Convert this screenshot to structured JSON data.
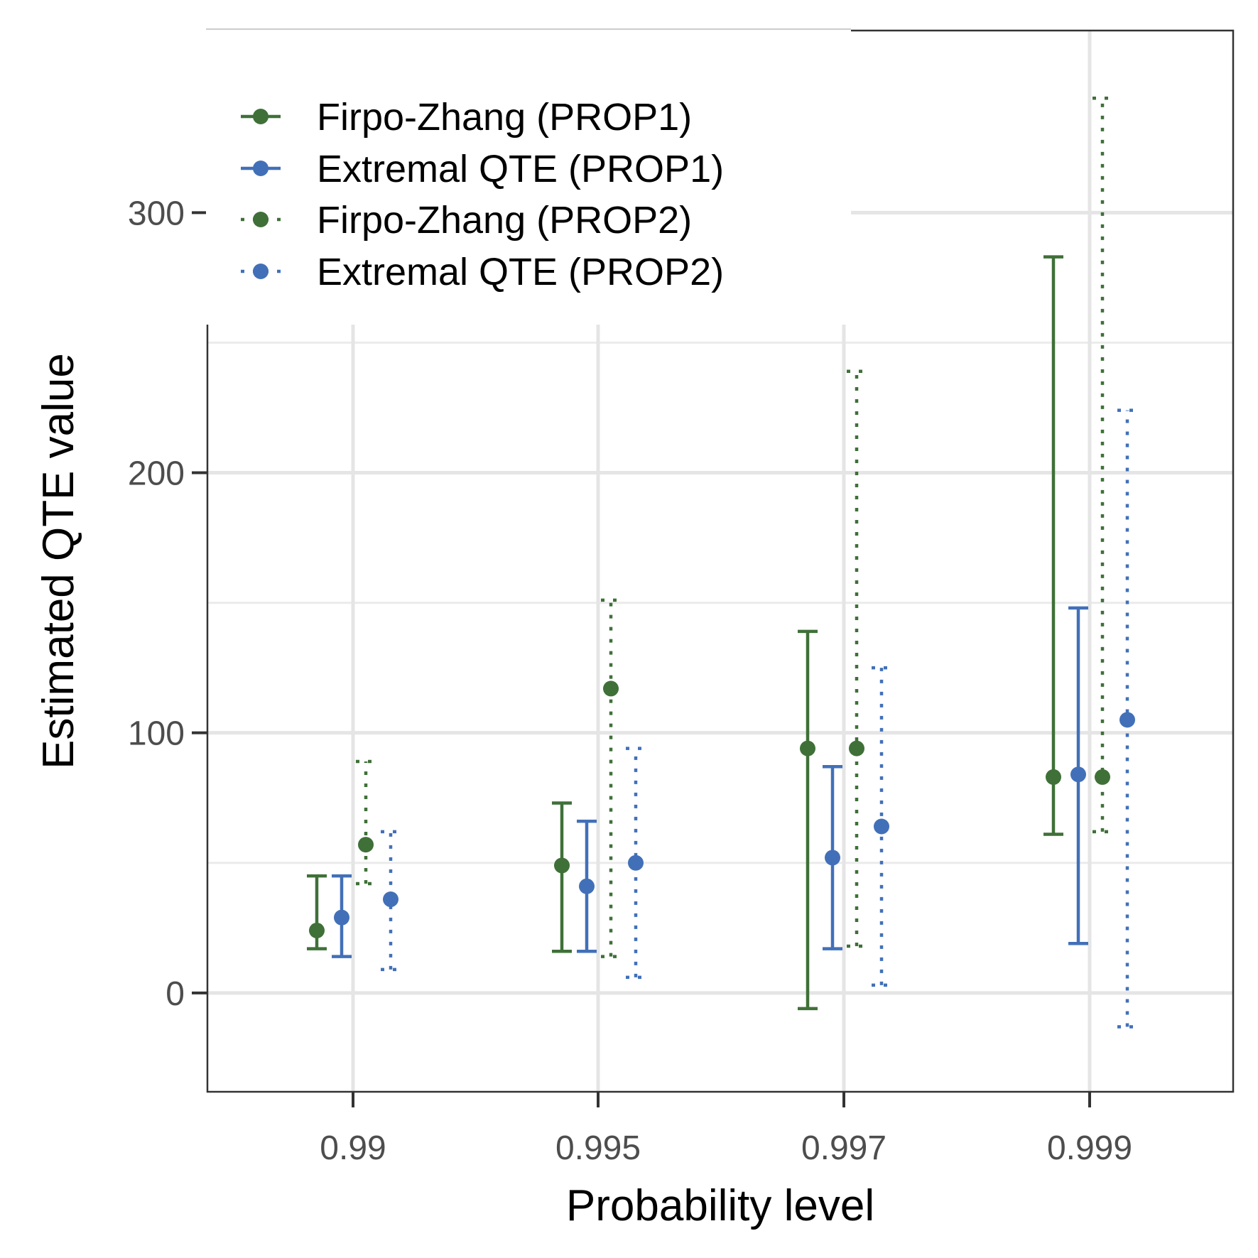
{
  "chart_data": {
    "type": "errorbar",
    "title": "",
    "xlabel": "Probability level",
    "ylabel": "Estimated QTE value",
    "categories": [
      "0.99",
      "0.995",
      "0.997",
      "0.999"
    ],
    "yticks": [
      0,
      100,
      200,
      300
    ],
    "yticks_minor": [
      50,
      150,
      250
    ],
    "ylim": [
      -38,
      370
    ],
    "grid": true,
    "legend_position": "top-left",
    "series": [
      {
        "name": "Firpo-Zhang (PROP1)",
        "color": "#3f7038",
        "linestyle": "solid",
        "points": [
          {
            "x": "0.99",
            "estimate": 24,
            "lower": 17,
            "upper": 45
          },
          {
            "x": "0.995",
            "estimate": 49,
            "lower": 16,
            "upper": 73
          },
          {
            "x": "0.997",
            "estimate": 94,
            "lower": -6,
            "upper": 139
          },
          {
            "x": "0.999",
            "estimate": 83,
            "lower": 61,
            "upper": 283
          }
        ]
      },
      {
        "name": "Extremal QTE (PROP1)",
        "color": "#4270b8",
        "linestyle": "solid",
        "points": [
          {
            "x": "0.99",
            "estimate": 29,
            "lower": 14,
            "upper": 45
          },
          {
            "x": "0.995",
            "estimate": 41,
            "lower": 16,
            "upper": 66
          },
          {
            "x": "0.997",
            "estimate": 52,
            "lower": 17,
            "upper": 87
          },
          {
            "x": "0.999",
            "estimate": 84,
            "lower": 19,
            "upper": 148
          }
        ]
      },
      {
        "name": "Firpo-Zhang (PROP2)",
        "color": "#3f7038",
        "linestyle": "dotted",
        "points": [
          {
            "x": "0.99",
            "estimate": 57,
            "lower": 42,
            "upper": 89
          },
          {
            "x": "0.995",
            "estimate": 117,
            "lower": 14,
            "upper": 151
          },
          {
            "x": "0.997",
            "estimate": 94,
            "lower": 18,
            "upper": 239
          },
          {
            "x": "0.999",
            "estimate": 83,
            "lower": 62,
            "upper": 344
          }
        ]
      },
      {
        "name": "Extremal QTE (PROP2)",
        "color": "#4270b8",
        "linestyle": "dotted",
        "points": [
          {
            "x": "0.99",
            "estimate": 36,
            "lower": 9,
            "upper": 62
          },
          {
            "x": "0.995",
            "estimate": 50,
            "lower": 6,
            "upper": 94
          },
          {
            "x": "0.997",
            "estimate": 64,
            "lower": 3,
            "upper": 125
          },
          {
            "x": "0.999",
            "estimate": 105,
            "lower": -13,
            "upper": 224
          }
        ]
      }
    ]
  }
}
